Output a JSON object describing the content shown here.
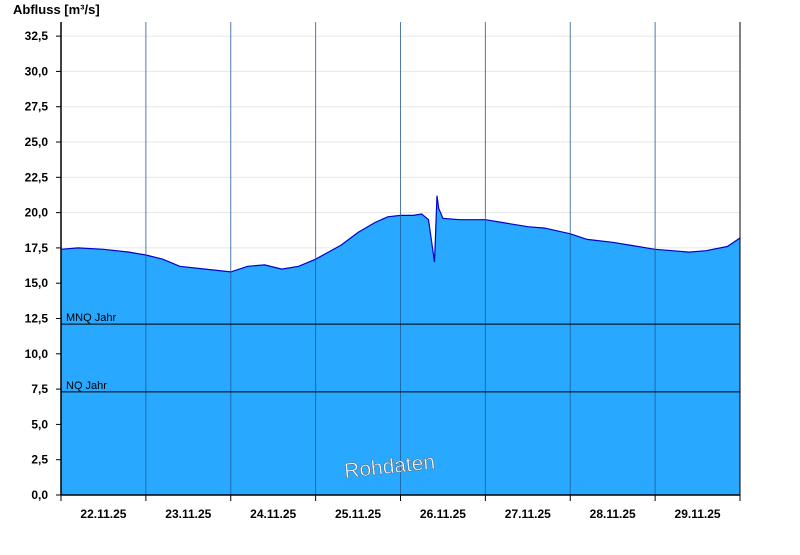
{
  "chart_data": {
    "type": "area",
    "ylabel": "Abfluss [m³/s]",
    "ylim": [
      0,
      33.5
    ],
    "yticks": [
      0,
      2.5,
      5,
      7.5,
      10,
      12.5,
      15,
      17.5,
      20,
      22.5,
      25,
      27.5,
      30,
      32.5
    ],
    "ytick_labels": [
      "0,0",
      "2,5",
      "5,0",
      "7,5",
      "10,0",
      "12,5",
      "15,0",
      "17,5",
      "20,0",
      "22,5",
      "25,0",
      "27,5",
      "30,0",
      "32,5"
    ],
    "x_range_days": [
      0,
      8
    ],
    "x_tick_labels": [
      "22.11.25",
      "23.11.25",
      "24.11.25",
      "25.11.25",
      "26.11.25",
      "27.11.25",
      "28.11.25",
      "29.11.25"
    ],
    "grid": "horizontal",
    "fill_color": "#29a8ff",
    "line_color": "#0000cc",
    "series": [
      {
        "x": [
          0,
          0.2,
          0.5,
          0.8,
          1.0,
          1.2,
          1.4,
          1.7,
          2.0,
          2.2,
          2.4,
          2.6,
          2.8,
          3.0,
          3.15,
          3.3,
          3.5,
          3.7,
          3.85,
          4.0,
          4.15,
          4.25,
          4.33,
          4.4,
          4.43,
          4.45,
          4.5,
          4.7,
          5.0,
          5.2,
          5.5,
          5.7,
          6.0,
          6.2,
          6.5,
          6.7,
          7.0,
          7.2,
          7.4,
          7.6,
          7.85,
          8.0
        ],
        "y": [
          17.4,
          17.5,
          17.4,
          17.2,
          17.0,
          16.7,
          16.2,
          16.0,
          15.8,
          16.2,
          16.3,
          16.0,
          16.2,
          16.7,
          17.2,
          17.7,
          18.6,
          19.3,
          19.7,
          19.8,
          19.8,
          19.9,
          19.5,
          16.5,
          21.2,
          20.3,
          19.6,
          19.5,
          19.5,
          19.3,
          19.0,
          18.9,
          18.5,
          18.1,
          17.9,
          17.7,
          17.4,
          17.3,
          17.2,
          17.3,
          17.6,
          18.2
        ]
      }
    ],
    "reference_lines": [
      {
        "name": "MNQ Jahr",
        "value": 12.1
      },
      {
        "name": "NQ Jahr",
        "value": 7.3
      }
    ],
    "watermark": "Rohdaten"
  }
}
